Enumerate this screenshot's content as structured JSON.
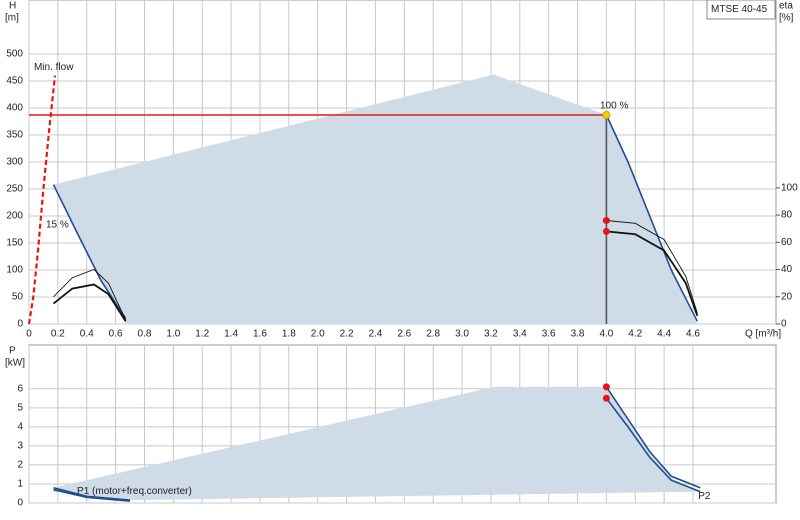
{
  "chart_data": [
    {
      "type": "line",
      "label": "MTSE 40-45",
      "ylabel": "H",
      "yunit": "[m]",
      "y2label": "eta",
      "y2unit": "[%]",
      "xlabel": "Q [m³/h]",
      "xlim": [
        0,
        5.175
      ],
      "xticks": [
        {
          "value": 0,
          "label": "0"
        },
        0.2,
        0.4,
        0.6,
        0.8,
        {
          "value": 1,
          "label": "1.0"
        },
        1.2,
        1.4,
        1.6,
        1.8,
        {
          "value": 2,
          "label": "2.0"
        },
        2.2,
        2.4,
        2.6,
        2.8,
        {
          "value": 3,
          "label": "3.0"
        },
        3.2,
        3.4,
        3.6,
        3.8,
        {
          "value": 4,
          "label": "4.0"
        },
        4.2,
        4.4,
        4.6
      ],
      "ylim": [
        0,
        600
      ],
      "yticks": [
        0,
        50,
        100,
        150,
        200,
        250,
        300,
        350,
        400,
        450,
        500
      ],
      "y2lim": [
        0,
        238
      ],
      "y2ticks": [
        0,
        20,
        40,
        60,
        80,
        100
      ],
      "grid": true,
      "annotations": [
        "15 %",
        "100 %"
      ],
      "series": [
        {
          "style": "area",
          "color": "#cfdbe6",
          "x": [
            0.17,
            3.22,
            4.0,
            4.15,
            4.3,
            4.45,
            4.63,
            0.67,
            0.5,
            0.35,
            0.17
          ],
          "values": [
            258,
            462,
            387,
            300,
            200,
            100,
            0,
            0,
            80,
            160,
            258
          ]
        },
        {
          "name": "Min. flow",
          "style": "dashed",
          "color": "#e8141b",
          "x": [
            0,
            0.03,
            0.06,
            0.1,
            0.14,
            0.18
          ],
          "values": [
            0,
            50,
            130,
            250,
            360,
            460
          ]
        },
        {
          "style": "line",
          "color": "#e8141b",
          "x": [
            0,
            4.0
          ],
          "values": [
            387,
            387
          ]
        },
        {
          "style": "line",
          "color": "#555555",
          "x": [
            4.0,
            4.0
          ],
          "values": [
            387,
            0
          ]
        },
        {
          "style": "line",
          "color": "#1f4e8c",
          "x": [
            4.0,
            4.15,
            4.3,
            4.45,
            4.63,
            null,
            0.17,
            0.35,
            0.5,
            0.67
          ],
          "values": [
            387,
            300,
            200,
            100,
            5,
            null,
            258,
            160,
            80,
            10
          ]
        },
        {
          "style": "thin",
          "color": "#111111",
          "axis": "y2",
          "x": [
            0.17,
            0.3,
            0.45,
            0.55,
            0.67,
            null,
            4.0,
            4.2,
            4.4,
            4.55,
            4.63
          ],
          "values": [
            20,
            34,
            40,
            30,
            3,
            null,
            76,
            74,
            62,
            35,
            8
          ]
        },
        {
          "style": "thick",
          "color": "#111111",
          "axis": "y2",
          "x": [
            0.17,
            0.3,
            0.45,
            0.55,
            0.67,
            null,
            4.0,
            4.2,
            4.4,
            4.55,
            4.63
          ],
          "values": [
            15,
            26,
            29,
            22,
            2,
            null,
            68,
            66,
            54,
            30,
            6
          ]
        },
        {
          "style": "points",
          "color": "#f5d100",
          "x": [
            4.0
          ],
          "values": [
            387
          ]
        },
        {
          "style": "points",
          "color": "#e8141b",
          "axis": "y2",
          "x": [
            4.0,
            4.0
          ],
          "values": [
            76,
            68
          ]
        }
      ]
    },
    {
      "type": "line",
      "ylabel": "P",
      "yunit": "[kW]",
      "xlim": [
        0,
        5.175
      ],
      "xticks": [
        0,
        0.2,
        0.4,
        0.6,
        0.8,
        1,
        1.2,
        1.4,
        1.6,
        1.8,
        2,
        2.2,
        2.4,
        2.6,
        2.8,
        3,
        3.2,
        3.4,
        3.6,
        3.8,
        4,
        4.2,
        4.4,
        4.6
      ],
      "xtick_labels": false,
      "ylim": [
        0,
        8.3
      ],
      "yticks": [
        0,
        1,
        2,
        3,
        4,
        5,
        6
      ],
      "grid": true,
      "series": [
        {
          "style": "area",
          "color": "#cfdbe6",
          "x": [
            0.17,
            3.22,
            4.0,
            4.15,
            4.3,
            4.45,
            4.65,
            0.7,
            0.17
          ],
          "values": [
            0.8,
            6.1,
            6.1,
            4.3,
            2.6,
            1.3,
            0.6,
            0.15,
            0.6
          ]
        },
        {
          "name": "P1 (motor+freq.converter)",
          "style": "line",
          "color": "#1f4e8c",
          "x": [
            4.0,
            4.15,
            4.3,
            4.45,
            4.65,
            null,
            0.17,
            0.4,
            0.7
          ],
          "values": [
            6.1,
            4.4,
            2.7,
            1.4,
            0.8,
            null,
            0.8,
            0.35,
            0.15
          ]
        },
        {
          "name": "P2",
          "style": "line",
          "color": "#1f4e8c",
          "x": [
            0.17,
            0.4,
            0.7,
            null,
            4.0,
            4.15,
            4.3,
            4.45,
            4.65
          ],
          "values": [
            0.7,
            0.3,
            0.1,
            null,
            5.5,
            4.0,
            2.4,
            1.2,
            0.6
          ]
        },
        {
          "style": "points",
          "color": "#e8141b",
          "x": [
            4.0,
            4.0
          ],
          "values": [
            6.1,
            5.5
          ]
        }
      ]
    }
  ]
}
